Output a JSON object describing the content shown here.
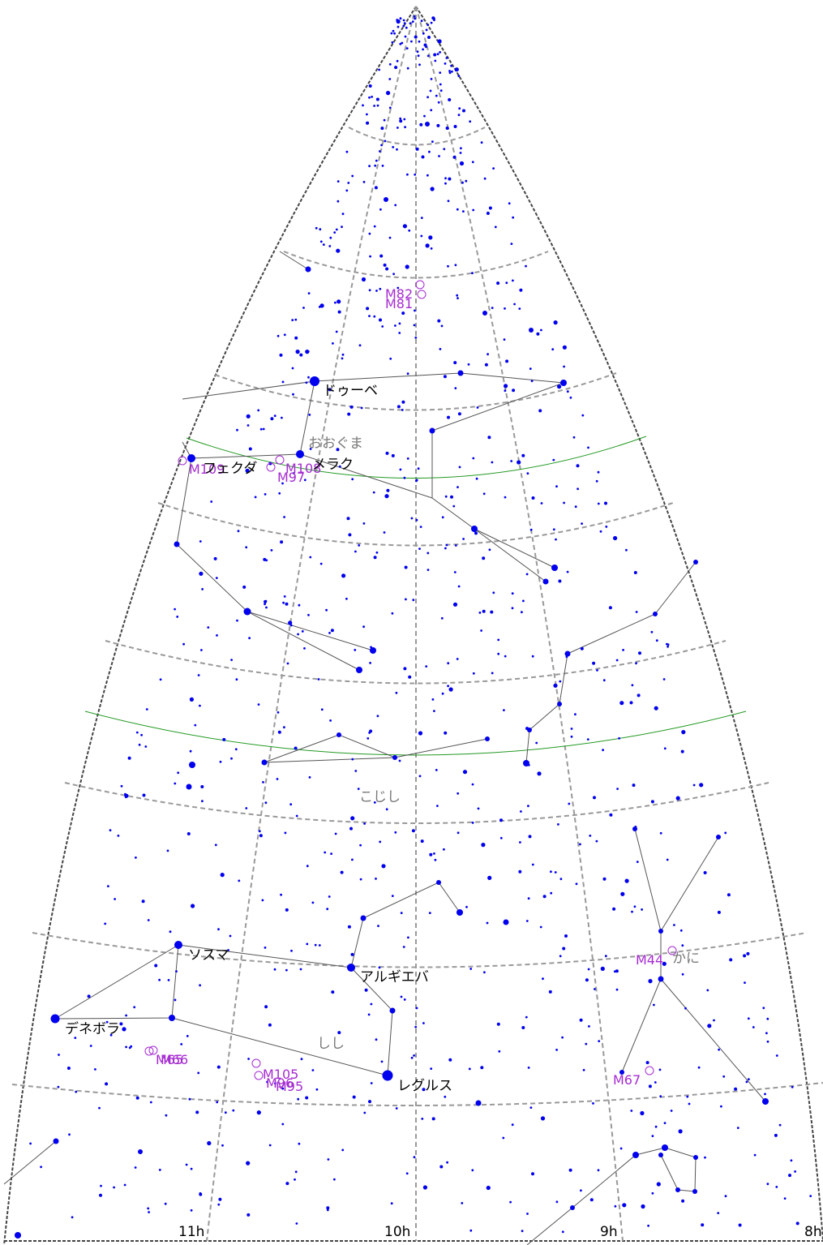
{
  "colors": {
    "star": "#0000ee",
    "grid": "#999999",
    "constellation_line": "#555555",
    "ecliptic": "#229922",
    "messier": "#a52bd1",
    "constellation_label": "#777777",
    "star_label": "#000000"
  },
  "ra_labels": [
    "11h",
    "10h",
    "9h",
    "8h"
  ],
  "constellation_labels": [
    "おおぐま",
    "こじし",
    "しし",
    "かに"
  ],
  "star_labels": [
    "ドゥーベ",
    "メラク",
    "フェクダ",
    "ソスマ",
    "アルギエバ",
    "デネボラ",
    "レグルス"
  ],
  "messier_labels": [
    "M82",
    "M81",
    "M108",
    "M97",
    "M109",
    "M65",
    "M66",
    "M105",
    "M96",
    "M95",
    "M44",
    "M67"
  ]
}
